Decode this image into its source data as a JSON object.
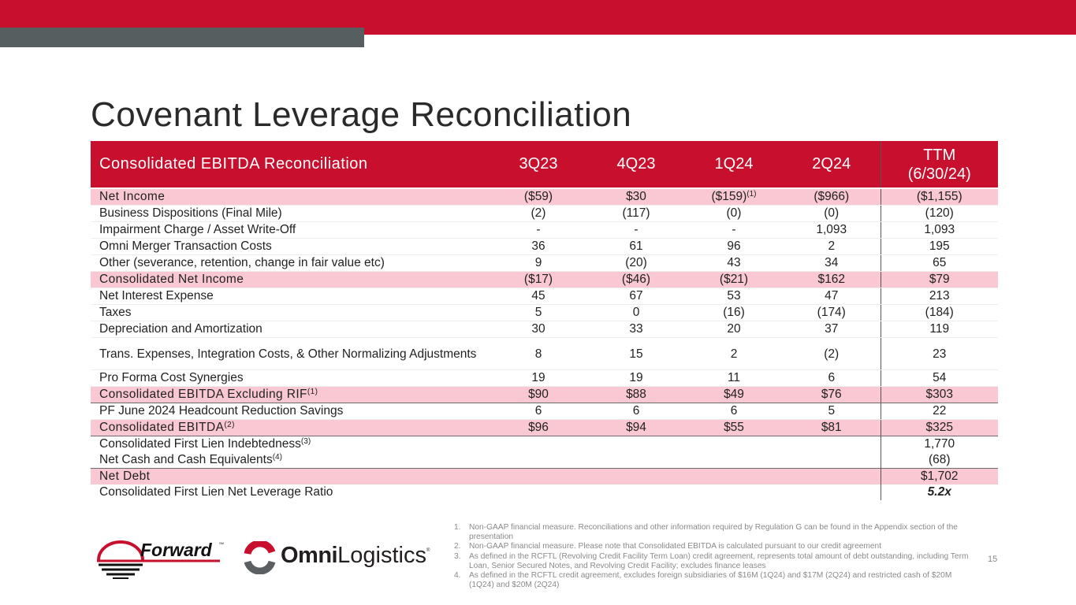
{
  "slide": {
    "title": "Covenant Leverage Reconciliation",
    "page_number": "15",
    "colors": {
      "brand_red": "#c8102e",
      "accent_gray": "#565e60",
      "highlight_pink": "#f9c8d2"
    }
  },
  "table": {
    "headers": {
      "label": "Consolidated EBITDA Reconciliation",
      "q1": "3Q23",
      "q2": "4Q23",
      "q3": "1Q24",
      "q4": "2Q24",
      "ttm_line1": "TTM",
      "ttm_line2": "(6/30/24)"
    },
    "rows": [
      {
        "label": "Net Income",
        "label_sup": "",
        "v": [
          "($59)",
          "$30",
          "($159)",
          "($966)",
          "($1,155)"
        ],
        "v3_sup": "(1)",
        "highlight": true
      },
      {
        "label": "Business Dispositions (Final Mile)",
        "label_sup": "",
        "v": [
          "(2)",
          "(117)",
          "(0)",
          "(0)",
          "(120)"
        ]
      },
      {
        "label": "Impairment Charge / Asset Write-Off",
        "label_sup": "",
        "v": [
          "-",
          "-",
          "-",
          "1,093",
          "1,093"
        ]
      },
      {
        "label": "Omni Merger Transaction Costs",
        "label_sup": "",
        "v": [
          "36",
          "61",
          "96",
          "2",
          "195"
        ]
      },
      {
        "label": "Other (severance, retention, change in fair value etc)",
        "label_sup": "",
        "v": [
          "9",
          "(20)",
          "43",
          "34",
          "65"
        ]
      },
      {
        "label": "Consolidated Net Income",
        "label_sup": "",
        "v": [
          "($17)",
          "($46)",
          "($21)",
          "$162",
          "$79"
        ],
        "highlight": true
      },
      {
        "label": "Net Interest Expense",
        "label_sup": "",
        "v": [
          "45",
          "67",
          "53",
          "47",
          "213"
        ]
      },
      {
        "label": "Taxes",
        "label_sup": "",
        "v": [
          "5",
          "0",
          "(16)",
          "(174)",
          "(184)"
        ]
      },
      {
        "label": "Depreciation and Amortization",
        "label_sup": "",
        "v": [
          "30",
          "33",
          "20",
          "37",
          "119"
        ]
      },
      {
        "label": "Trans. Expenses, Integration Costs, & Other Normalizing Adjustments",
        "label_sup": "",
        "v": [
          "8",
          "15",
          "2",
          "(2)",
          "23"
        ]
      },
      {
        "label": "Pro Forma Cost Synergies",
        "label_sup": "",
        "v": [
          "19",
          "19",
          "11",
          "6",
          "54"
        ]
      },
      {
        "label": "Consolidated EBITDA Excluding RIF",
        "label_sup": "(1)",
        "v": [
          "$90",
          "$88",
          "$49",
          "$76",
          "$303"
        ],
        "highlight": true
      },
      {
        "label": "PF June 2024 Headcount Reduction Savings",
        "label_sup": "",
        "v": [
          "6",
          "6",
          "6",
          "5",
          "22"
        ]
      },
      {
        "label": "Consolidated EBITDA",
        "label_sup": "(2)",
        "v": [
          "$96",
          "$94",
          "$55",
          "$81",
          "$325"
        ],
        "highlight": true
      },
      {
        "label": "Consolidated First Lien Indebtedness",
        "label_sup": "(3)",
        "v": [
          "",
          "",
          "",
          "",
          "1,770"
        ]
      },
      {
        "label": "Net Cash and Cash Equivalents",
        "label_sup": "(4)",
        "v": [
          "",
          "",
          "",
          "",
          "(68)"
        ]
      },
      {
        "label": "Net Debt",
        "label_sup": "",
        "v": [
          "",
          "",
          "",
          "",
          "$1,702"
        ],
        "highlight": true
      },
      {
        "label": "Consolidated First Lien Net Leverage Ratio",
        "label_sup": "",
        "v": [
          "",
          "",
          "",
          "",
          "5.2x"
        ]
      }
    ]
  },
  "logos": {
    "forward": {
      "name": "Forward",
      "mark": "SM"
    },
    "omni": {
      "bold": "Omni",
      "light": "Logistics",
      "mark": "®"
    }
  },
  "footnotes": [
    {
      "num": "1.",
      "text": "Non-GAAP financial measure. Reconciliations and other information required by Regulation G can be found in the Appendix section of the presentation"
    },
    {
      "num": "2.",
      "text": "Non-GAAP financial measure. Please note that Consolidated EBITDA is calculated pursuant to our credit agreement"
    },
    {
      "num": "3.",
      "text": "As defined in the RCFTL (Revolving Credit Facility Term Loan) credit agreement, represents total amount of debt outstanding, including Term Loan, Senior Secured Notes, and Revolving Credit Facility; excludes finance leases"
    },
    {
      "num": "4.",
      "text": "As defined in the RCFTL credit agreement, excludes foreign subsidiaries of $16M (1Q24) and $17M (2Q24) and restricted cash of $20M (1Q24) and $20M (2Q24)"
    }
  ]
}
